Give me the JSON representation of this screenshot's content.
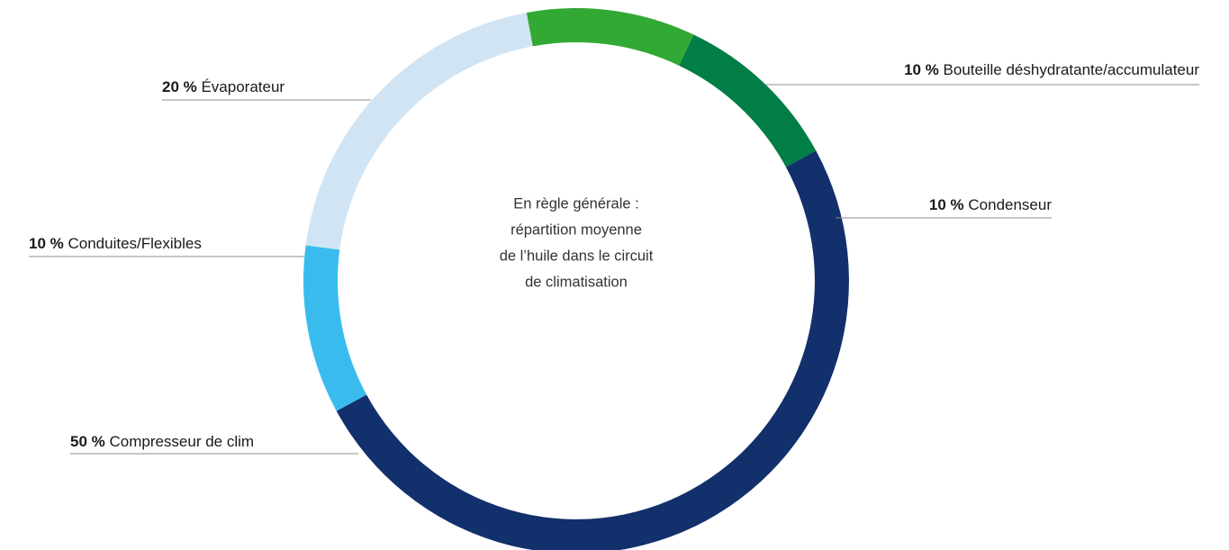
{
  "chart_data": {
    "type": "pie",
    "donut": true,
    "center_text": [
      "En règle générale :",
      "répartition moyenne",
      "de l’huile dans le circuit",
      "de climatisation"
    ],
    "slices": [
      {
        "label": "Bouteille déshydratante/accumulateur",
        "value": 10,
        "value_label": "10 %",
        "color": "#33a935"
      },
      {
        "label": "Condenseur",
        "value": 10,
        "value_label": "10 %",
        "color": "#007e46"
      },
      {
        "label": "Compresseur de clim",
        "value": 50,
        "value_label": "50 %",
        "color": "#12306b"
      },
      {
        "label": "Conduites/Flexibles",
        "value": 10,
        "value_label": "10 %",
        "color": "#39bced"
      },
      {
        "label": "Évaporateur",
        "value": 20,
        "value_label": "20 %",
        "color": "#d1e4f3"
      }
    ]
  }
}
